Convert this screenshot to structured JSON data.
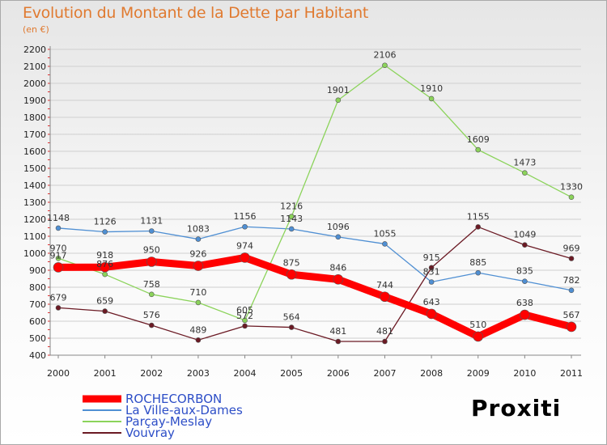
{
  "title": "Evolution du Montant de la Dette par Habitant",
  "subtitle": "(en €)",
  "logo": "Proxiti",
  "colors": {
    "title": "#e07a30",
    "legend_text": "#2d4ec7",
    "grid": "#cfcfcf"
  },
  "chart_data": {
    "type": "line",
    "title": "Evolution du Montant de la Dette par Habitant",
    "ylabel": "(en €)",
    "xlabel": "",
    "ylim": [
      400,
      2200
    ],
    "yticks": [
      400,
      500,
      600,
      700,
      800,
      900,
      1000,
      1100,
      1200,
      1300,
      1400,
      1500,
      1600,
      1700,
      1800,
      1900,
      2000,
      2100,
      2200
    ],
    "categories": [
      "2000",
      "2001",
      "2002",
      "2003",
      "2004",
      "2005",
      "2006",
      "2007",
      "2008",
      "2009",
      "2010",
      "2011"
    ],
    "grid": "horizontal",
    "legend_position": "bottom-left",
    "series": [
      {
        "name": "ROCHECORBON",
        "color": "#ff0000",
        "emphasis": true,
        "values": [
          917,
          918,
          950,
          926,
          974,
          875,
          846,
          744,
          643,
          510,
          638,
          567
        ]
      },
      {
        "name": "La Ville-aux-Dames",
        "color": "#4f8fd3",
        "values": [
          1148,
          1126,
          1131,
          1083,
          1156,
          1143,
          1096,
          1055,
          831,
          885,
          835,
          782
        ]
      },
      {
        "name": "Parçay-Meslay",
        "color": "#8bd35a",
        "values": [
          970,
          876,
          758,
          710,
          605,
          1216,
          1901,
          2106,
          1910,
          1609,
          1473,
          1330
        ]
      },
      {
        "name": "Vouvray",
        "color": "#6b1a24",
        "values": [
          679,
          659,
          576,
          489,
          572,
          564,
          481,
          481,
          915,
          1155,
          1049,
          969
        ]
      }
    ]
  }
}
